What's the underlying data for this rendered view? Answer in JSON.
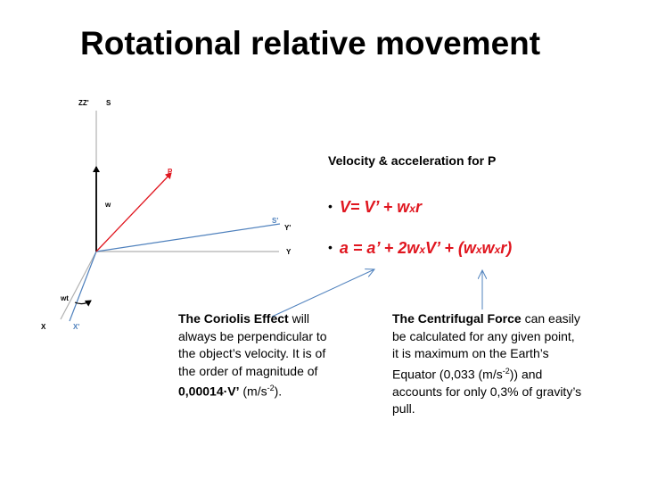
{
  "slide": {
    "title": "Rotational relative movement"
  },
  "diagram": {
    "labels": {
      "zz": "ZZ'",
      "s": "S",
      "p": "P",
      "w": "w",
      "s_prime": "S'",
      "y_prime": "Y'",
      "y": "Y",
      "wt": "wt",
      "x": "X",
      "x_prime": "X'"
    },
    "colors": {
      "red_vector": "#e0161f",
      "blue_axis": "#4f81bd",
      "callout": "#4f81bd"
    }
  },
  "velocity": {
    "heading": "Velocity & acceleration for P",
    "bullet": "•",
    "eq1": {
      "a": "V= V’ + w",
      "x": "x",
      "b": "r"
    },
    "eq2": {
      "a": "a = a’ + 2w",
      "x1": "x",
      "b": "V’ + (w",
      "x2": "x",
      "c": "w",
      "x3": "x",
      "d": "r)"
    }
  },
  "coriolis": {
    "bold": "The Coriolis Effect",
    "text": " will always be perpendicular to the object’s velocity. It is of the order of magnitude of ",
    "value": "0,00014·V’",
    "unit_open": " (m/s",
    "unit_sup": "-2",
    "unit_close": ")."
  },
  "centrifugal": {
    "bold": "The Centrifugal Force",
    "text1": " can easily be calculated for any given point, it is maximum on the Earth’s Equator (0,033 (m/s",
    "sup": "-2",
    "text2": ")) and accounts for only 0,3% of gravity’s pull."
  }
}
